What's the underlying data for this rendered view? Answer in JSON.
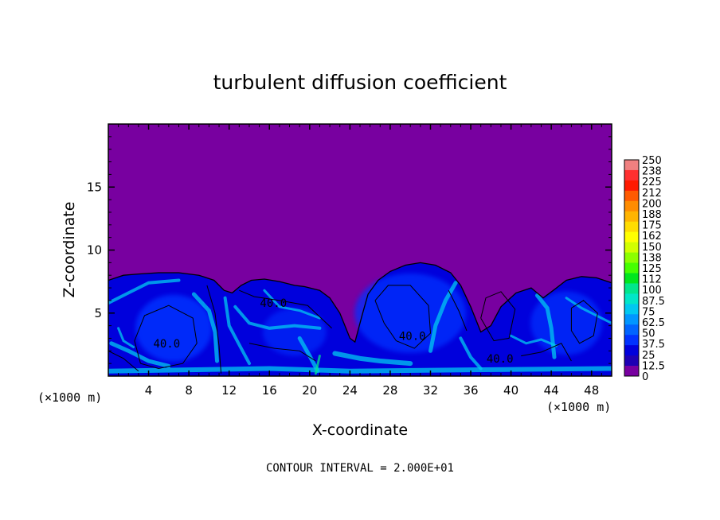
{
  "chart_data": {
    "type": "heatmap",
    "title": "turbulent diffusion coefficient",
    "xlabel": "X-coordinate",
    "ylabel": "Z-coordinate",
    "x_unit": "(×1000 m)",
    "z_unit": "(×1000 m)",
    "xlim": [
      0,
      50
    ],
    "ylim": [
      0,
      20
    ],
    "x_ticks": [
      4,
      8,
      12,
      16,
      20,
      24,
      28,
      32,
      36,
      40,
      44,
      48
    ],
    "y_ticks": [
      5,
      10,
      15
    ],
    "colorbar": {
      "labels": [
        "250",
        "238",
        "225",
        "212",
        "200",
        "188",
        "175",
        "162",
        "150",
        "138",
        "125",
        "112",
        "100",
        "87.5",
        "75",
        "62.5",
        "50",
        "37.5",
        "25",
        "12.5",
        "0"
      ],
      "colors": [
        "#f08080",
        "#ff3030",
        "#ff1a00",
        "#ff5a00",
        "#ff8c00",
        "#ffb400",
        "#ffdc00",
        "#ffff00",
        "#d2ff00",
        "#8cff00",
        "#46ff00",
        "#00e61e",
        "#00e68c",
        "#00e6c8",
        "#00c8f0",
        "#0096ff",
        "#0064ff",
        "#0032ff",
        "#0000dc",
        "#1e00b4",
        "#7800a0"
      ]
    },
    "contour_labels": [
      {
        "text": "40.0",
        "x": 5.8,
        "z": 2.6
      },
      {
        "text": "40.0",
        "x": 16.4,
        "z": 5.8
      },
      {
        "text": "40.0",
        "x": 30.2,
        "z": 3.2
      },
      {
        "text": "40.0",
        "x": 38.9,
        "z": 1.4
      }
    ],
    "boundary_top_z": [
      [
        0,
        7.6
      ],
      [
        1.5,
        8.0
      ],
      [
        3,
        8.1
      ],
      [
        5,
        8.2
      ],
      [
        7,
        8.2
      ],
      [
        9,
        8.0
      ],
      [
        10.5,
        7.6
      ],
      [
        11.5,
        6.8
      ],
      [
        12.3,
        6.6
      ],
      [
        13.2,
        7.2
      ],
      [
        14.2,
        7.6
      ],
      [
        15.5,
        7.7
      ],
      [
        17,
        7.5
      ],
      [
        18.5,
        7.2
      ],
      [
        19.5,
        7.1
      ],
      [
        21,
        6.8
      ],
      [
        22,
        6.2
      ],
      [
        23,
        5.0
      ],
      [
        24,
        3.0
      ],
      [
        24.5,
        2.7
      ],
      [
        25.2,
        4.8
      ],
      [
        25.8,
        6.5
      ],
      [
        26.8,
        7.6
      ],
      [
        28,
        8.3
      ],
      [
        29.5,
        8.8
      ],
      [
        31,
        9.0
      ],
      [
        32.5,
        8.8
      ],
      [
        34,
        8.2
      ],
      [
        35,
        7.2
      ],
      [
        36,
        5.5
      ],
      [
        37,
        3.5
      ],
      [
        38,
        4.0
      ],
      [
        39,
        5.5
      ],
      [
        40.5,
        6.6
      ],
      [
        42,
        7.0
      ],
      [
        43.2,
        6.2
      ],
      [
        44.2,
        6.8
      ],
      [
        45.5,
        7.6
      ],
      [
        47,
        7.9
      ],
      [
        48.5,
        7.8
      ],
      [
        50,
        7.4
      ]
    ]
  },
  "footer": {
    "contour_interval": "CONTOUR INTERVAL = 2.000E+01"
  },
  "colors": {
    "background": "#7800a0",
    "turbulent_layer": "#0000dc",
    "core": "#0032ff",
    "streak": "#00c8f0"
  }
}
